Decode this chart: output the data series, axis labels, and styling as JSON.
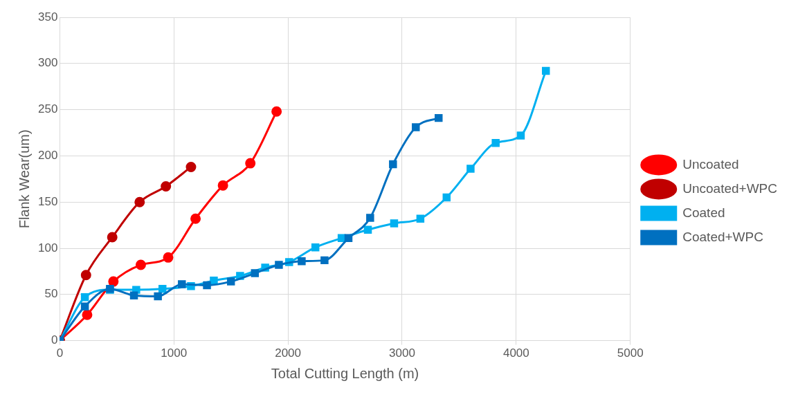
{
  "chart_data": {
    "type": "line",
    "xlabel": "Total Cutting Length (m)",
    "ylabel": "Flank Wear(um)",
    "xlim": [
      0,
      5000
    ],
    "xticks": [
      0,
      1000,
      2000,
      3000,
      4000,
      5000
    ],
    "ylim": [
      0,
      350
    ],
    "yticks": [
      0,
      50,
      100,
      150,
      200,
      250,
      300,
      350
    ],
    "grid": true,
    "legend": "right",
    "line_style": "solid",
    "series": [
      {
        "name": "Uncoated",
        "color": "#ff0000",
        "marker": "circle",
        "x": [
          0,
          240,
          470,
          710,
          950,
          1190,
          1430,
          1670,
          1900
        ],
        "values": [
          0,
          28,
          64,
          82,
          90,
          132,
          168,
          192,
          248
        ]
      },
      {
        "name": "Uncoated+WPC",
        "color": "#c00000",
        "marker": "circle",
        "x": [
          0,
          230,
          460,
          700,
          930,
          1150
        ],
        "values": [
          0,
          71,
          112,
          150,
          167,
          188
        ]
      },
      {
        "name": "Coated",
        "color": "#00b0f0",
        "marker": "square",
        "x": [
          0,
          220,
          440,
          670,
          900,
          1150,
          1350,
          1580,
          1800,
          2010,
          2240,
          2470,
          2700,
          2930,
          3160,
          3390,
          3600,
          3820,
          4040,
          4260
        ],
        "values": [
          0,
          47,
          55,
          55,
          56,
          59,
          65,
          70,
          79,
          85,
          101,
          111,
          120,
          127,
          132,
          155,
          186,
          214,
          222,
          292
        ]
      },
      {
        "name": "Coated+WPC",
        "color": "#0070c0",
        "marker": "square",
        "x": [
          0,
          220,
          440,
          650,
          860,
          1070,
          1290,
          1500,
          1710,
          1920,
          2120,
          2320,
          2530,
          2720,
          2920,
          3120,
          3320
        ],
        "values": [
          0,
          37,
          56,
          49,
          48,
          61,
          60,
          64,
          73,
          82,
          86,
          87,
          111,
          133,
          191,
          231,
          241
        ]
      }
    ]
  }
}
